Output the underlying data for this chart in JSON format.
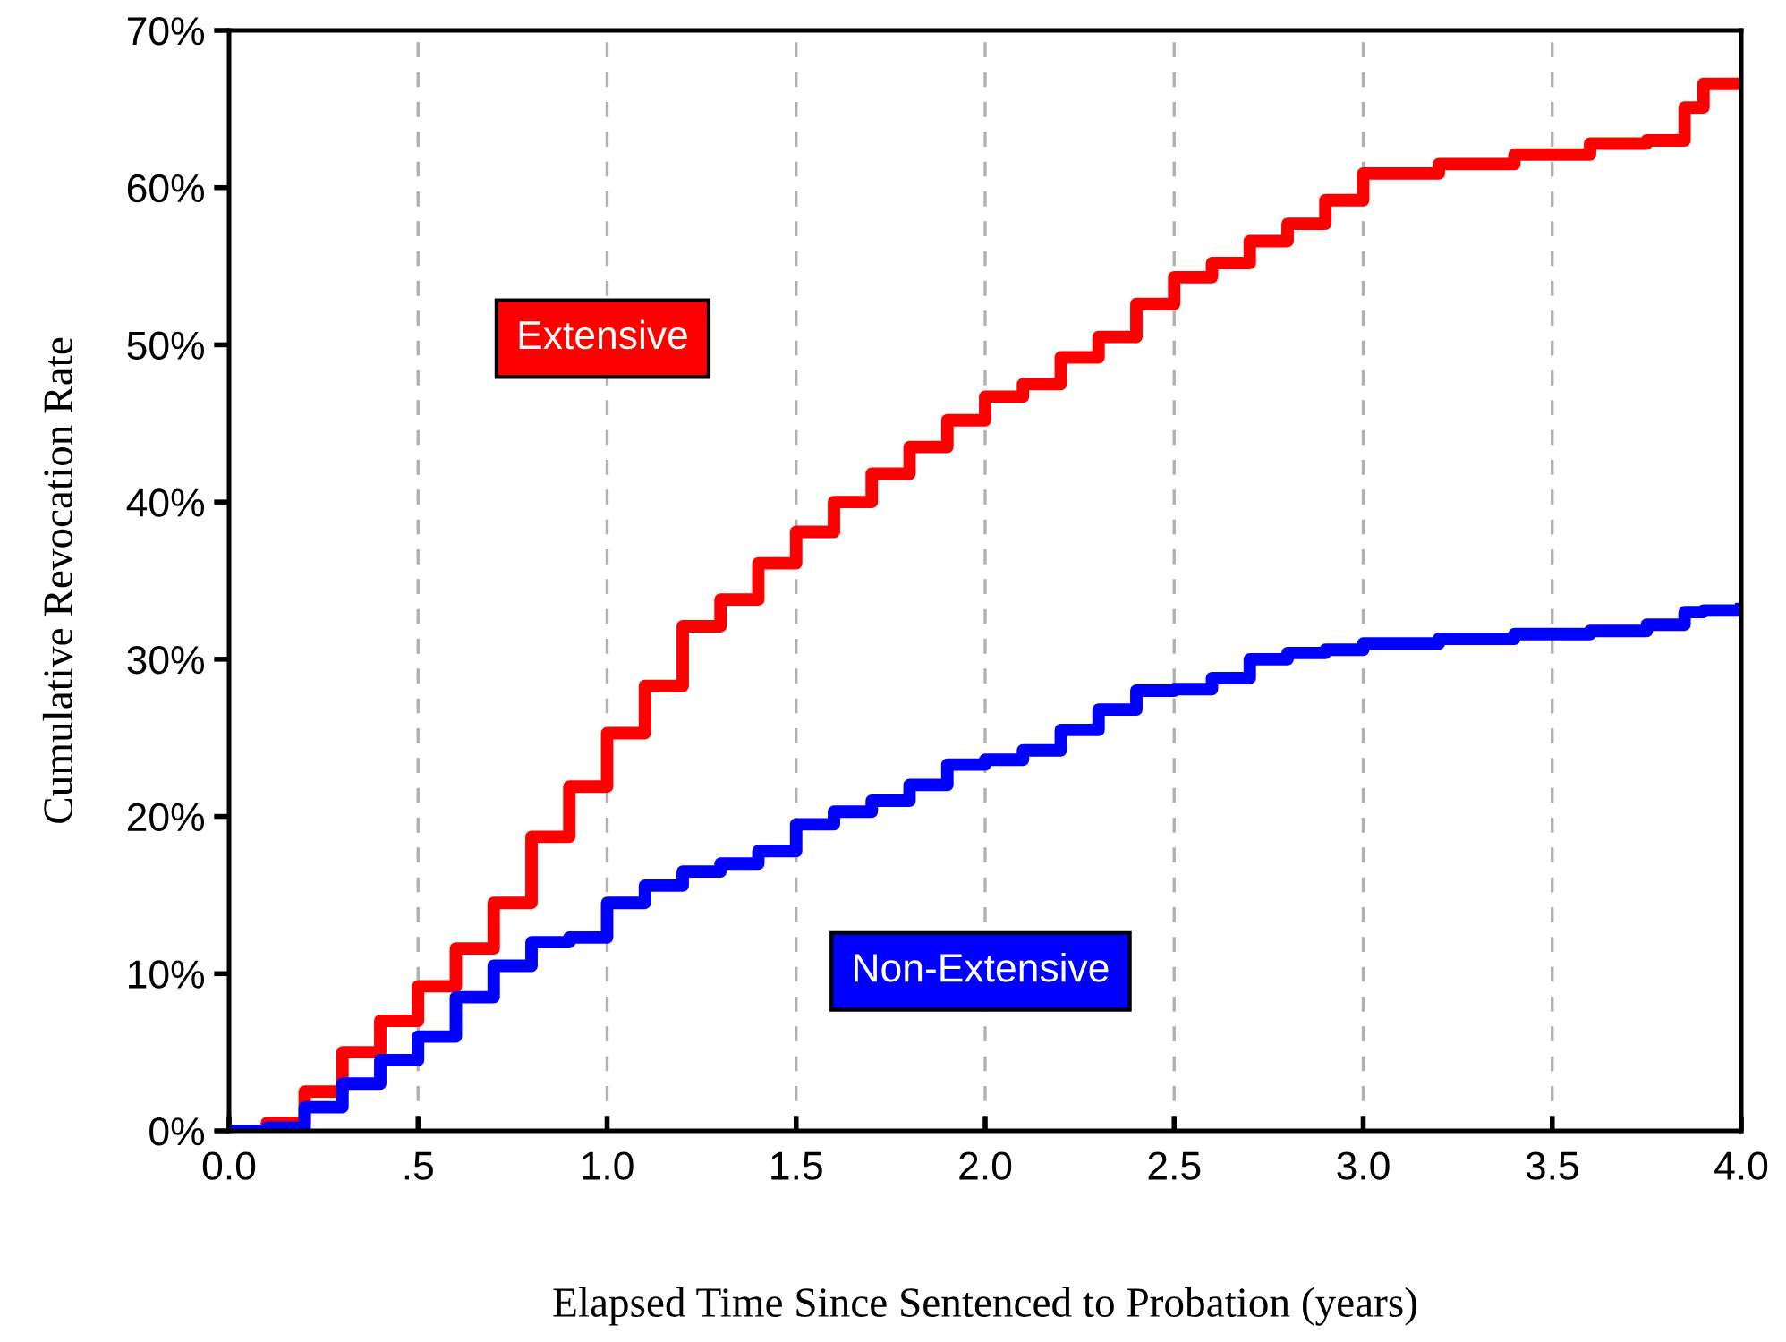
{
  "chart_data": {
    "type": "step",
    "xlabel": "Elapsed Time Since Sentenced to Probation (years)",
    "ylabel": "Cumulative Revocation Rate",
    "xlim": [
      0,
      4
    ],
    "xticks": [
      {
        "value": 0,
        "label": "0.0"
      },
      {
        "value": 0.5,
        "label": ".5"
      },
      {
        "value": 1,
        "label": "1.0"
      },
      {
        "value": 1.5,
        "label": "1.5"
      },
      {
        "value": 2,
        "label": "2.0"
      },
      {
        "value": 2.5,
        "label": "2.5"
      },
      {
        "value": 3,
        "label": "3.0"
      },
      {
        "value": 3.5,
        "label": "3.5"
      },
      {
        "value": 4,
        "label": "4.0"
      }
    ],
    "ylim": [
      0,
      70
    ],
    "yticks": [
      {
        "value": 0,
        "label": "0%"
      },
      {
        "value": 10,
        "label": "10%"
      },
      {
        "value": 20,
        "label": "20%"
      },
      {
        "value": 30,
        "label": "30%"
      },
      {
        "value": 40,
        "label": "40%"
      },
      {
        "value": 50,
        "label": "50%"
      },
      {
        "value": 60,
        "label": "60%"
      },
      {
        "value": 70,
        "label": "70%"
      }
    ],
    "grid": "x",
    "line_style": "solid",
    "x": [
      0,
      0.1,
      0.2,
      0.3,
      0.4,
      0.5,
      0.6,
      0.7,
      0.8,
      0.9,
      1.0,
      1.1,
      1.2,
      1.3,
      1.4,
      1.5,
      1.6,
      1.7,
      1.8,
      1.9,
      2.0,
      2.1,
      2.2,
      2.3,
      2.4,
      2.5,
      2.6,
      2.7,
      2.8,
      2.9,
      3.0,
      3.2,
      3.4,
      3.6,
      3.75,
      3.85,
      3.9,
      4.0
    ],
    "series": [
      {
        "name": "Extensive",
        "color": "#ff0000",
        "values": [
          0,
          0.5,
          2.5,
          5,
          7,
          9.2,
          11.6,
          14.5,
          18.7,
          21.9,
          25.3,
          28.3,
          32.1,
          33.8,
          36.1,
          38.1,
          40,
          41.8,
          43.5,
          45.2,
          46.7,
          47.5,
          49.2,
          50.5,
          52.6,
          54.3,
          55.2,
          56.6,
          57.7,
          59.2,
          60.9,
          61.5,
          62.1,
          62.8,
          63,
          65.1,
          66.6,
          66.6
        ]
      },
      {
        "name": "Non-Extensive",
        "color": "#0000ff",
        "values": [
          0,
          0.2,
          1.5,
          3,
          4.5,
          6,
          8.5,
          10.5,
          12,
          12.3,
          14.5,
          15.6,
          16.5,
          17,
          17.8,
          19.5,
          20.3,
          21,
          22,
          23.3,
          23.6,
          24.2,
          25.5,
          26.8,
          28,
          28.1,
          28.8,
          30,
          30.4,
          30.6,
          31,
          31.3,
          31.6,
          31.8,
          32.2,
          33,
          33.1,
          33.2
        ]
      }
    ]
  }
}
